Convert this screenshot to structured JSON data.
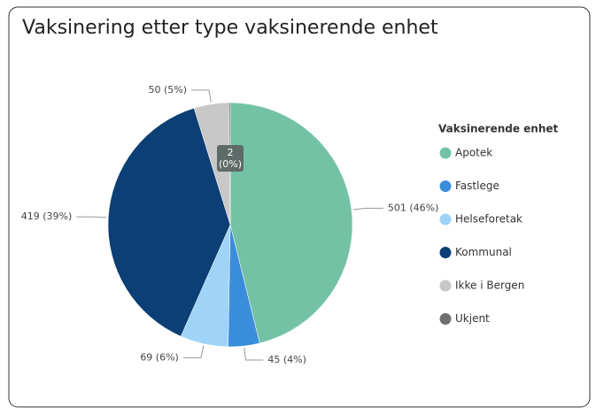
{
  "chart_data": {
    "type": "pie",
    "title": "Vaksinering etter type vaksinerende enhet",
    "legend_title": "Vaksinerende enhet",
    "categories": [
      "Apotek",
      "Fastlege",
      "Helseforetak",
      "Kommunal",
      "Ikke i Bergen",
      "Ukjent"
    ],
    "values": [
      501,
      45,
      69,
      419,
      50,
      2
    ],
    "value_labels": [
      "501 (46%)",
      "45 (4%)",
      "69 (6%)",
      "419 (39%)",
      "50 (5%)",
      "2 (0%)"
    ],
    "colors": [
      "#74c2a5",
      "#3a8ddb",
      "#9fd3f7",
      "#0b3f75",
      "#c8c8c8",
      "#6f6f6f"
    ],
    "legend": "right"
  }
}
